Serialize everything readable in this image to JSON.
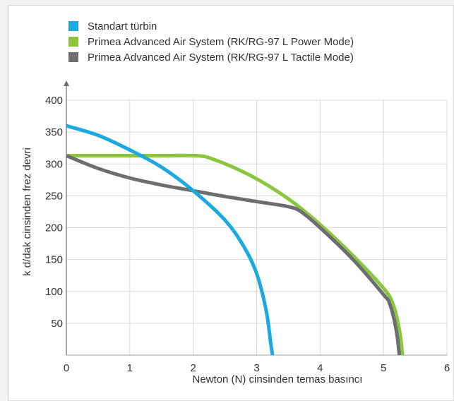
{
  "chart_data": {
    "type": "line",
    "title": "",
    "xlabel": "Newton (N) cinsinden temas basıncı",
    "ylabel": "k d/dak cinsinden frez devri",
    "xlim": [
      0,
      6
    ],
    "ylim": [
      0,
      400
    ],
    "x_ticks": [
      "0",
      "1",
      "2",
      "3",
      "4",
      "5",
      "6"
    ],
    "y_ticks": [
      "50",
      "100",
      "150",
      "200",
      "250",
      "300",
      "350",
      "400"
    ],
    "grid": true,
    "legend_position": "top-left",
    "series": [
      {
        "name": "Standart türbin",
        "color": "#1aa9e1",
        "points": [
          [
            0,
            360
          ],
          [
            0.5,
            345
          ],
          [
            1,
            322
          ],
          [
            1.5,
            295
          ],
          [
            2,
            258
          ],
          [
            2.5,
            212
          ],
          [
            2.8,
            170
          ],
          [
            3.0,
            128
          ],
          [
            3.15,
            70
          ],
          [
            3.22,
            20
          ],
          [
            3.25,
            0
          ]
        ]
      },
      {
        "name": "Primea Advanced Air System (RK/RG-97 L Power Mode)",
        "color": "#8cc63f",
        "points": [
          [
            0,
            313
          ],
          [
            0.5,
            313
          ],
          [
            1,
            313
          ],
          [
            1.5,
            313
          ],
          [
            2.05,
            313
          ],
          [
            2.3,
            308
          ],
          [
            2.8,
            287
          ],
          [
            3.2,
            265
          ],
          [
            3.6,
            238
          ],
          [
            4,
            205
          ],
          [
            4.5,
            158
          ],
          [
            5,
            105
          ],
          [
            5.15,
            80
          ],
          [
            5.25,
            40
          ],
          [
            5.3,
            0
          ]
        ]
      },
      {
        "name": "Primea Advanced Air System (RK/RG-97 L Tactile Mode)",
        "color": "#6d6e70",
        "points": [
          [
            0,
            313
          ],
          [
            0.5,
            293
          ],
          [
            1,
            278
          ],
          [
            1.5,
            267
          ],
          [
            2,
            258
          ],
          [
            2.5,
            249
          ],
          [
            3,
            241
          ],
          [
            3.5,
            233
          ],
          [
            3.7,
            225
          ],
          [
            4,
            200
          ],
          [
            4.5,
            152
          ],
          [
            5,
            95
          ],
          [
            5.1,
            80
          ],
          [
            5.2,
            40
          ],
          [
            5.25,
            0
          ]
        ]
      }
    ]
  }
}
